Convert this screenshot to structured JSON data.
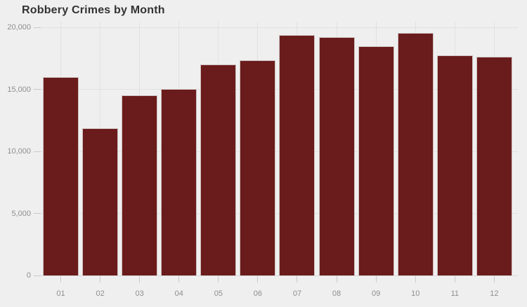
{
  "chart_data": {
    "type": "bar",
    "title": "Robbery Crimes by Month",
    "categories": [
      "01",
      "02",
      "03",
      "04",
      "05",
      "06",
      "07",
      "08",
      "09",
      "10",
      "11",
      "12"
    ],
    "values": [
      16000,
      11900,
      14550,
      15050,
      17050,
      17350,
      19400,
      19250,
      18500,
      19550,
      17750,
      17650
    ],
    "xlabel": "",
    "ylabel": "",
    "ylim": [
      0,
      20000
    ],
    "yticks": [
      0,
      5000,
      10000,
      15000,
      20000
    ],
    "ytick_labels": [
      "0",
      "5,000",
      "10,000",
      "15,000",
      "20,000"
    ],
    "grid": "on",
    "legend": "none",
    "colors": {
      "bar_fill": "#6A1B1B",
      "bar_border": "#CEC0C0",
      "background": "#EFEFEF",
      "gridline": "#E1E1E1",
      "axis_line": "#D9D9D9",
      "tick_mark": "#C9C9C9",
      "tick_label": "#8E8E8E",
      "title": "#333333"
    }
  }
}
